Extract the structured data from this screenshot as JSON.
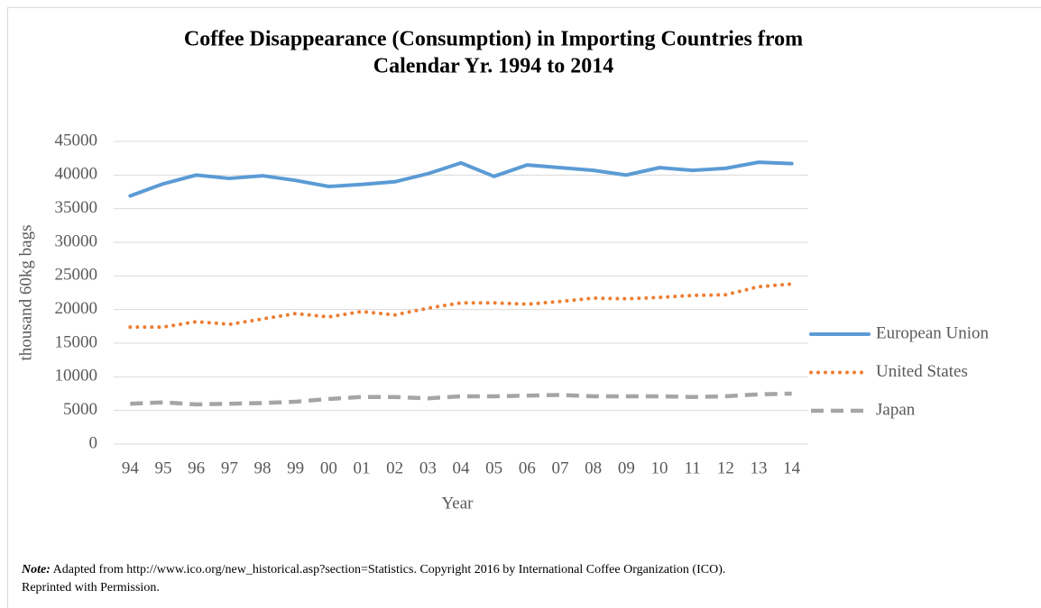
{
  "chart_data": {
    "type": "line",
    "title": [
      "Coffee Disappearance (Consumption) in Importing Countries from",
      "Calendar Yr. 1994 to 2014"
    ],
    "x_label": "Year",
    "y_label": "thousand 60kg bags",
    "categories": [
      "94",
      "95",
      "96",
      "97",
      "98",
      "99",
      "00",
      "01",
      "02",
      "03",
      "04",
      "05",
      "06",
      "07",
      "08",
      "09",
      "10",
      "11",
      "12",
      "13",
      "14"
    ],
    "series": [
      {
        "name": "European Union",
        "color": "#5b9bd5",
        "style": "solid",
        "values": [
          36900,
          38700,
          40000,
          39500,
          39900,
          39200,
          38300,
          38600,
          39000,
          40200,
          41800,
          39800,
          41500,
          41100,
          40700,
          40000,
          41100,
          40700,
          41000,
          41900,
          41700
        ]
      },
      {
        "name": "United States",
        "color": "#ed7d31",
        "style": "dotted",
        "values": [
          17400,
          17400,
          18200,
          17800,
          18600,
          19400,
          18900,
          19700,
          19200,
          20200,
          21000,
          21000,
          20800,
          21200,
          21700,
          21600,
          21800,
          22100,
          22200,
          23400,
          23800
        ]
      },
      {
        "name": "Japan",
        "color": "#a5a5a5",
        "style": "dashed",
        "values": [
          6000,
          6200,
          5900,
          6000,
          6100,
          6300,
          6700,
          7000,
          7000,
          6800,
          7100,
          7100,
          7200,
          7300,
          7100,
          7100,
          7100,
          7000,
          7100,
          7400,
          7500
        ]
      }
    ],
    "ylim": [
      0,
      45000
    ],
    "yticks": [
      0,
      5000,
      10000,
      15000,
      20000,
      25000,
      30000,
      35000,
      40000,
      45000
    ],
    "grid": true,
    "legend": "right",
    "note_label": "Note:",
    "note": [
      "Adapted from http://www.ico.org/new_historical.asp?section=Statistics.  Copyright 2016 by International Coffee Organization (ICO).",
      "Reprinted with Permission."
    ]
  }
}
